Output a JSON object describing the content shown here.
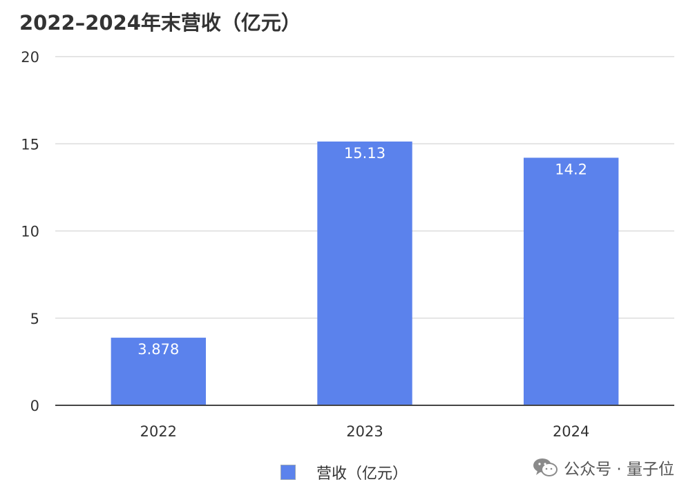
{
  "chart_data": {
    "type": "bar",
    "title": "2022–2024年末营收（亿元）",
    "categories": [
      "2022",
      "2023",
      "2024"
    ],
    "series": [
      {
        "name": "营收（亿元）",
        "values": [
          3.878,
          15.13,
          14.2
        ],
        "labels": [
          "3.878",
          "15.13",
          "14.2"
        ]
      }
    ],
    "ylim": [
      0,
      20
    ],
    "yticks": [
      0,
      5,
      10,
      15,
      20
    ],
    "grid": true,
    "legend_position": "bottom",
    "bar_color": "#5b82ec"
  },
  "watermark": {
    "text": "公众号 · 量子位",
    "icon": "wechat-icon"
  }
}
